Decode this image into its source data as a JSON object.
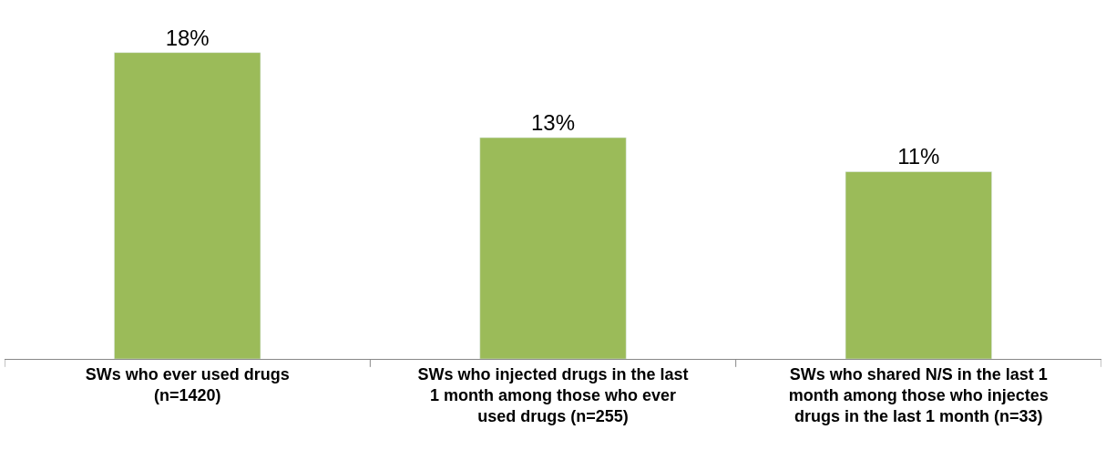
{
  "chart_data": {
    "type": "bar",
    "categories": [
      "SWs who ever used drugs\n(n=1420)",
      "SWs who injected drugs in the last\n1 month among those who ever\nused drugs (n=255)",
      "SWs who shared N/S in the last 1\nmonth among those who injectes\ndrugs in the last 1 month (n=33)"
    ],
    "values": [
      18,
      13,
      11
    ],
    "value_labels": [
      "18%",
      "13%",
      "11%"
    ],
    "color": "#9bbb59",
    "tick_labels": "x"
  }
}
